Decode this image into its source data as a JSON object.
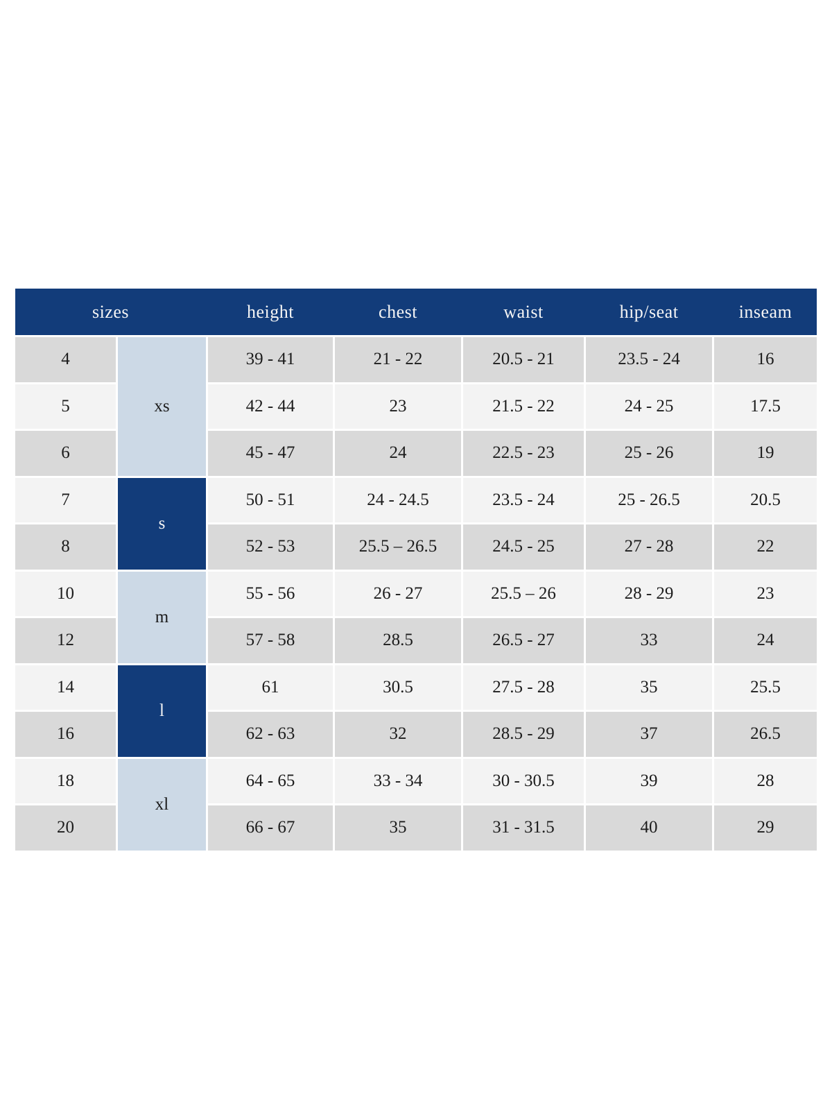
{
  "page": {
    "background": "#ffffff"
  },
  "colors": {
    "header_bg": "#123c7a",
    "header_text": "#f5f5f5",
    "group_light_bg": "#ccd9e6",
    "group_dark_bg": "#123c7a",
    "row_dark": "#d9d9d9",
    "row_light": "#f3f3f3",
    "body_text": "#1c1c1c",
    "gridline": "#ffffff"
  },
  "chart_data": {
    "type": "table",
    "title": "",
    "columns": [
      "sizes",
      "height",
      "chest",
      "waist",
      "hip/seat",
      "inseam"
    ],
    "size_groups": [
      {
        "label": "xs",
        "sizes": [
          "4",
          "5",
          "6"
        ],
        "style": "light"
      },
      {
        "label": "s",
        "sizes": [
          "7",
          "8"
        ],
        "style": "dark"
      },
      {
        "label": "m",
        "sizes": [
          "10",
          "12"
        ],
        "style": "light"
      },
      {
        "label": "l",
        "sizes": [
          "14",
          "16"
        ],
        "style": "dark"
      },
      {
        "label": "xl",
        "sizes": [
          "18",
          "20"
        ],
        "style": "light"
      }
    ],
    "rows": [
      {
        "size": "4",
        "height": "39 - 41",
        "chest": "21 - 22",
        "waist": "20.5 - 21",
        "hip_seat": "23.5 - 24",
        "inseam": "16"
      },
      {
        "size": "5",
        "height": "42 - 44",
        "chest": "23",
        "waist": "21.5 - 22",
        "hip_seat": "24 - 25",
        "inseam": "17.5"
      },
      {
        "size": "6",
        "height": "45 - 47",
        "chest": "24",
        "waist": "22.5 - 23",
        "hip_seat": "25 - 26",
        "inseam": "19"
      },
      {
        "size": "7",
        "height": "50 - 51",
        "chest": "24 - 24.5",
        "waist": "23.5 - 24",
        "hip_seat": "25 - 26.5",
        "inseam": "20.5"
      },
      {
        "size": "8",
        "height": "52 - 53",
        "chest": "25.5 – 26.5",
        "waist": "24.5 - 25",
        "hip_seat": "27 - 28",
        "inseam": "22"
      },
      {
        "size": "10",
        "height": "55 - 56",
        "chest": "26 - 27",
        "waist": "25.5 – 26",
        "hip_seat": "28 - 29",
        "inseam": "23"
      },
      {
        "size": "12",
        "height": "57 - 58",
        "chest": "28.5",
        "waist": "26.5 - 27",
        "hip_seat": "33",
        "inseam": "24"
      },
      {
        "size": "14",
        "height": "61",
        "chest": "30.5",
        "waist": "27.5 - 28",
        "hip_seat": "35",
        "inseam": "25.5"
      },
      {
        "size": "16",
        "height": "62 - 63",
        "chest": "32",
        "waist": "28.5 - 29",
        "hip_seat": "37",
        "inseam": "26.5"
      },
      {
        "size": "18",
        "height": "64 - 65",
        "chest": "33 - 34",
        "waist": "30 - 30.5",
        "hip_seat": "39",
        "inseam": "28"
      },
      {
        "size": "20",
        "height": "66 - 67",
        "chest": "35",
        "waist": "31 - 31.5",
        "hip_seat": "40",
        "inseam": "29"
      }
    ],
    "layout_hints": {
      "header_position": "top",
      "row_striping": [
        "#d9d9d9",
        "#f3f3f3"
      ],
      "grid": "white 3px gridlines, no outer border"
    }
  }
}
